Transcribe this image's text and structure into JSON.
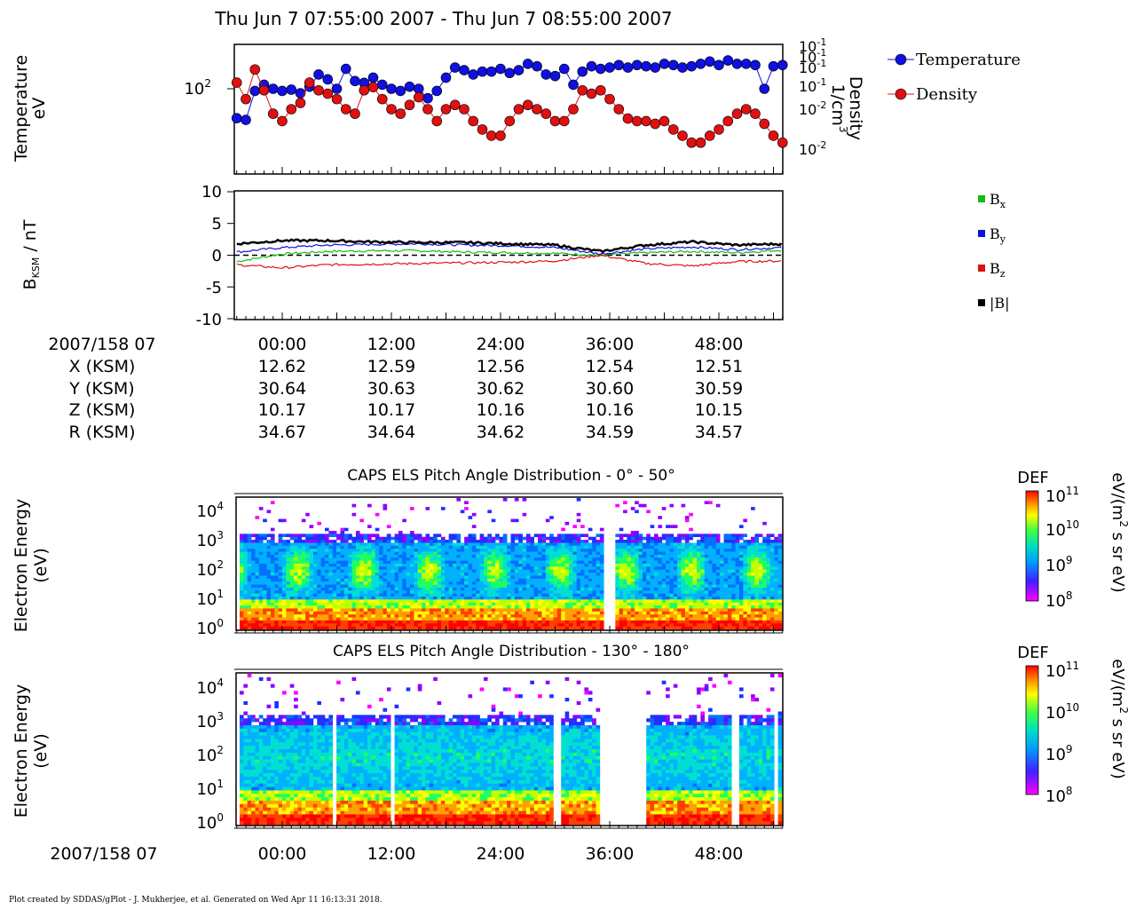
{
  "header": {
    "title": "Thu Jun 7 07:55:00 2007 - Thu Jun 7 08:55:00 2007"
  },
  "footer": {
    "credit": "Plot created by SDDAS/gPlot - J. Mukherjee, et al.  Generated on Wed Apr 11 16:13:31 2018."
  },
  "colors": {
    "temperature": "#1010e0",
    "density": "#e01010",
    "bx": "#10c010",
    "by": "#1010e0",
    "bz": "#e01010",
    "btot": "#000000"
  },
  "ephemeris": {
    "date_label": "2007/158 07",
    "row_labels": [
      "X (KSM)",
      "Y (KSM)",
      "Z (KSM)",
      "R (KSM)"
    ],
    "times": [
      "00:00",
      "12:00",
      "24:00",
      "36:00",
      "48:00"
    ],
    "rows": [
      [
        "12.62",
        "12.59",
        "12.56",
        "12.54",
        "12.51"
      ],
      [
        "30.64",
        "30.63",
        "30.62",
        "30.60",
        "30.59"
      ],
      [
        "10.17",
        "10.17",
        "10.16",
        "10.16",
        "10.15"
      ],
      [
        "34.67",
        "34.64",
        "34.62",
        "34.59",
        "34.57"
      ]
    ]
  },
  "bottom_axis": {
    "date_label": "2007/158 07",
    "times": [
      "00:00",
      "12:00",
      "24:00",
      "36:00",
      "48:00"
    ]
  },
  "chart_data": [
    {
      "type": "line",
      "ylabel": "Temperature eV",
      "ylabel2": "Density 1/cm3",
      "ytick_left": "10^2",
      "yticks_right": [
        "10^-1",
        "10^-1",
        "10^-1",
        "10^-1",
        "10^-2",
        "10^-2"
      ],
      "legend": [
        "Temperature",
        "Density"
      ],
      "legend_position": "right",
      "x_minutes": [
        -5,
        -4,
        -3,
        -2,
        -1,
        0,
        1,
        2,
        3,
        4,
        5,
        6,
        7,
        8,
        9,
        10,
        11,
        12,
        13,
        14,
        15,
        16,
        17,
        18,
        19,
        20,
        21,
        22,
        23,
        24,
        25,
        26,
        27,
        28,
        29,
        30,
        31,
        32,
        33,
        34,
        35,
        36,
        37,
        38,
        39,
        40,
        41,
        42,
        43,
        44,
        45,
        46,
        47,
        48,
        49,
        50,
        51,
        52,
        53,
        54,
        55
      ],
      "series": [
        {
          "name": "Temperature",
          "values": [
            50,
            48,
            95,
            110,
            100,
            95,
            98,
            90,
            105,
            140,
            125,
            100,
            160,
            120,
            115,
            130,
            110,
            100,
            95,
            105,
            100,
            80,
            95,
            130,
            165,
            155,
            140,
            150,
            150,
            160,
            145,
            155,
            180,
            170,
            140,
            135,
            160,
            110,
            150,
            170,
            160,
            165,
            175,
            165,
            175,
            170,
            165,
            180,
            175,
            165,
            170,
            180,
            190,
            175,
            195,
            180,
            180,
            175,
            100,
            170,
            175
          ]
        },
        {
          "name": "Density",
          "values": [
            0.045,
            0.035,
            0.055,
            0.04,
            0.028,
            0.025,
            0.03,
            0.033,
            0.045,
            0.04,
            0.038,
            0.035,
            0.03,
            0.028,
            0.04,
            0.042,
            0.035,
            0.03,
            0.028,
            0.032,
            0.036,
            0.03,
            0.025,
            0.03,
            0.032,
            0.03,
            0.025,
            0.022,
            0.02,
            0.02,
            0.025,
            0.03,
            0.032,
            0.03,
            0.028,
            0.025,
            0.025,
            0.03,
            0.04,
            0.038,
            0.04,
            0.035,
            0.03,
            0.026,
            0.025,
            0.025,
            0.024,
            0.025,
            0.022,
            0.02,
            0.018,
            0.018,
            0.02,
            0.022,
            0.025,
            0.028,
            0.03,
            0.028,
            0.024,
            0.02,
            0.018
          ]
        }
      ]
    },
    {
      "type": "line",
      "ylabel": "BKSM / nT",
      "ylim": [
        -10,
        10
      ],
      "yticks": [
        "10",
        "5",
        "0",
        "-5",
        "-10"
      ],
      "legend": [
        "Bx",
        "By",
        "Bz",
        "|B|"
      ],
      "legend_position": "right",
      "x_minutes": [
        -5,
        0,
        5,
        10,
        15,
        20,
        25,
        30,
        35,
        40,
        45,
        50,
        55
      ],
      "series": [
        {
          "name": "Bx",
          "values": [
            -1.0,
            0.2,
            0.6,
            0.7,
            0.7,
            0.5,
            0.4,
            0.3,
            0.0,
            0.4,
            0.6,
            0.4,
            0.8
          ]
        },
        {
          "name": "By",
          "values": [
            0.5,
            1.2,
            1.6,
            1.7,
            1.8,
            1.6,
            1.5,
            1.2,
            0.2,
            1.0,
            1.3,
            0.9,
            1.2
          ]
        },
        {
          "name": "Bz",
          "values": [
            -1.5,
            -2.0,
            -1.5,
            -1.4,
            -1.3,
            -1.2,
            -1.1,
            -0.9,
            0.0,
            -1.3,
            -1.7,
            -1.0,
            -0.9
          ]
        },
        {
          "name": "|B|",
          "values": [
            1.8,
            2.3,
            2.3,
            2.1,
            2.0,
            2.0,
            1.8,
            1.6,
            0.6,
            1.6,
            2.1,
            1.6,
            1.8
          ]
        }
      ]
    },
    {
      "type": "heatmap",
      "title": "CAPS ELS Pitch Angle Distribution - 0° - 50°",
      "ylabel": "Electron Energy (eV)",
      "yticks": [
        "10^4",
        "10^3",
        "10^2",
        "10^1",
        "10^0"
      ],
      "colorbar_label": "DEF",
      "colorbar_units": "eV/(m2 s sr eV)",
      "colorbar_ticks": [
        "10^11",
        "10^10",
        "10^9",
        "10^8"
      ],
      "data_gaps_minutes": [
        [
          35.5,
          36.5
        ]
      ]
    },
    {
      "type": "heatmap",
      "title": "CAPS ELS Pitch Angle Distribution - 130° - 180°",
      "ylabel": "Electron Energy (eV)",
      "yticks": [
        "10^4",
        "10^3",
        "10^2",
        "10^1",
        "10^0"
      ],
      "colorbar_label": "DEF",
      "colorbar_units": "eV/(m2 s sr eV)",
      "colorbar_ticks": [
        "10^11",
        "10^10",
        "10^9",
        "10^8"
      ],
      "data_gaps_minutes": [
        [
          5.5,
          6.0
        ],
        [
          12.0,
          12.5
        ],
        [
          30.0,
          30.8
        ],
        [
          35.0,
          40.0
        ],
        [
          49.5,
          50.2
        ],
        [
          54.0,
          54.5
        ]
      ]
    }
  ]
}
